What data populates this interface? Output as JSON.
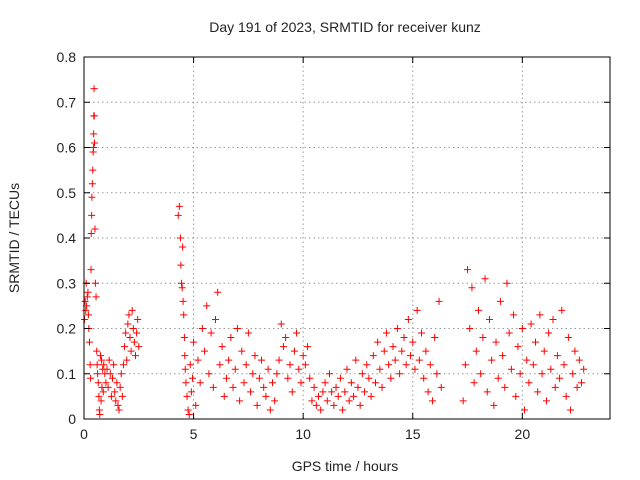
{
  "chart_data": {
    "type": "scatter",
    "title": "Day 191 of 2023, SRMTID for receiver kunz",
    "xlabel": "GPS time / hours",
    "ylabel": "SRMTID / TECUs",
    "xlim": [
      0,
      24
    ],
    "ylim": [
      0,
      0.8
    ],
    "xticks": [
      0,
      5,
      10,
      15,
      20
    ],
    "xtick_labels": [
      "0",
      "5",
      "10",
      "15",
      "20"
    ],
    "yticks": [
      0,
      0.1,
      0.2,
      0.3,
      0.4,
      0.5,
      0.6,
      0.7,
      0.8
    ],
    "ytick_labels": [
      "0",
      "0.1",
      "0.2",
      "0.3",
      "0.4",
      "0.5",
      "0.6",
      "0.7",
      "0.8"
    ],
    "grid": true,
    "marker": "+",
    "color": "#ff0000",
    "series": [
      {
        "name": "SRMTID",
        "points": [
          [
            0.02,
            0.22
          ],
          [
            0.05,
            0.26
          ],
          [
            0.08,
            0.24
          ],
          [
            0.1,
            0.3
          ],
          [
            0.12,
            0.25
          ],
          [
            0.15,
            0.27
          ],
          [
            0.18,
            0.28
          ],
          [
            0.2,
            0.23
          ],
          [
            0.22,
            0.2
          ],
          [
            0.25,
            0.17
          ],
          [
            0.28,
            0.12
          ],
          [
            0.3,
            0.09
          ],
          [
            0.32,
            0.33
          ],
          [
            0.33,
            0.41
          ],
          [
            0.35,
            0.45
          ],
          [
            0.36,
            0.49
          ],
          [
            0.38,
            0.52
          ],
          [
            0.4,
            0.55
          ],
          [
            0.42,
            0.59
          ],
          [
            0.43,
            0.6
          ],
          [
            0.44,
            0.63
          ],
          [
            0.45,
            0.67
          ],
          [
            0.46,
            0.73
          ],
          [
            0.47,
            0.67
          ],
          [
            0.48,
            0.61
          ],
          [
            0.5,
            0.42
          ],
          [
            0.52,
            0.3
          ],
          [
            0.55,
            0.27
          ],
          [
            0.58,
            0.15
          ],
          [
            0.6,
            0.12
          ],
          [
            0.62,
            0.1
          ],
          [
            0.65,
            0.08
          ],
          [
            0.68,
            0.05
          ],
          [
            0.7,
            0.02
          ],
          [
            0.72,
            0.01
          ],
          [
            0.75,
            0.14
          ],
          [
            0.78,
            0.04
          ],
          [
            0.8,
            0.13
          ],
          [
            0.82,
            0.07
          ],
          [
            0.85,
            0.11
          ],
          [
            0.88,
            0.06
          ],
          [
            0.9,
            0.12
          ],
          [
            0.95,
            0.1
          ],
          [
            1.0,
            0.08
          ],
          [
            1.05,
            0.11
          ],
          [
            1.1,
            0.07
          ],
          [
            1.15,
            0.13
          ],
          [
            1.2,
            0.1
          ],
          [
            1.25,
            0.05
          ],
          [
            1.3,
            0.09
          ],
          [
            1.35,
            0.12
          ],
          [
            1.4,
            0.06
          ],
          [
            1.45,
            0.04
          ],
          [
            1.5,
            0.08
          ],
          [
            1.55,
            0.03
          ],
          [
            1.6,
            0.02
          ],
          [
            1.65,
            0.07
          ],
          [
            1.7,
            0.1
          ],
          [
            1.75,
            0.05
          ],
          [
            1.8,
            0.12
          ],
          [
            1.85,
            0.16
          ],
          [
            1.9,
            0.19
          ],
          [
            1.95,
            0.13
          ],
          [
            2.0,
            0.21
          ],
          [
            2.05,
            0.23
          ],
          [
            2.1,
            0.18
          ],
          [
            2.15,
            0.15
          ],
          [
            2.2,
            0.24
          ],
          [
            2.25,
            0.2
          ],
          [
            2.3,
            0.17
          ],
          [
            2.35,
            0.14
          ],
          [
            2.4,
            0.19
          ],
          [
            2.45,
            0.22
          ],
          [
            2.5,
            0.16
          ],
          [
            4.3,
            0.45
          ],
          [
            4.35,
            0.47
          ],
          [
            4.4,
            0.4
          ],
          [
            4.42,
            0.34
          ],
          [
            4.45,
            0.3
          ],
          [
            4.48,
            0.29
          ],
          [
            4.5,
            0.38
          ],
          [
            4.52,
            0.26
          ],
          [
            4.55,
            0.23
          ],
          [
            4.58,
            0.18
          ],
          [
            4.6,
            0.14
          ],
          [
            4.62,
            0.11
          ],
          [
            4.65,
            0.08
          ],
          [
            4.7,
            0.05
          ],
          [
            4.75,
            0.02
          ],
          [
            4.8,
            0.01
          ],
          [
            4.85,
            0.12
          ],
          [
            4.9,
            0.06
          ],
          [
            4.95,
            0.09
          ],
          [
            5.0,
            0.17
          ],
          [
            5.1,
            0.03
          ],
          [
            5.2,
            0.13
          ],
          [
            5.3,
            0.08
          ],
          [
            5.4,
            0.2
          ],
          [
            5.5,
            0.15
          ],
          [
            5.6,
            0.25
          ],
          [
            5.7,
            0.1
          ],
          [
            5.8,
            0.19
          ],
          [
            5.9,
            0.07
          ],
          [
            6.0,
            0.22
          ],
          [
            6.1,
            0.28
          ],
          [
            6.2,
            0.12
          ],
          [
            6.3,
            0.16
          ],
          [
            6.4,
            0.05
          ],
          [
            6.5,
            0.09
          ],
          [
            6.6,
            0.13
          ],
          [
            6.7,
            0.18
          ],
          [
            6.8,
            0.07
          ],
          [
            6.9,
            0.11
          ],
          [
            7.0,
            0.2
          ],
          [
            7.1,
            0.04
          ],
          [
            7.2,
            0.15
          ],
          [
            7.3,
            0.08
          ],
          [
            7.4,
            0.12
          ],
          [
            7.5,
            0.19
          ],
          [
            7.6,
            0.06
          ],
          [
            7.7,
            0.1
          ],
          [
            7.8,
            0.14
          ],
          [
            7.9,
            0.03
          ],
          [
            8.0,
            0.09
          ],
          [
            8.1,
            0.13
          ],
          [
            8.2,
            0.07
          ],
          [
            8.3,
            0.05
          ],
          [
            8.4,
            0.11
          ],
          [
            8.5,
            0.02
          ],
          [
            8.6,
            0.08
          ],
          [
            8.7,
            0.04
          ],
          [
            8.8,
            0.1
          ],
          [
            8.9,
            0.13
          ],
          [
            9.0,
            0.21
          ],
          [
            9.1,
            0.16
          ],
          [
            9.2,
            0.18
          ],
          [
            9.3,
            0.09
          ],
          [
            9.4,
            0.12
          ],
          [
            9.5,
            0.06
          ],
          [
            9.6,
            0.15
          ],
          [
            9.7,
            0.19
          ],
          [
            9.8,
            0.11
          ],
          [
            9.9,
            0.08
          ],
          [
            10.0,
            0.14
          ],
          [
            10.1,
            0.12
          ],
          [
            10.2,
            0.16
          ],
          [
            10.3,
            0.09
          ],
          [
            10.4,
            0.04
          ],
          [
            10.5,
            0.07
          ],
          [
            10.6,
            0.03
          ],
          [
            10.7,
            0.05
          ],
          [
            10.8,
            0.02
          ],
          [
            10.9,
            0.06
          ],
          [
            11.0,
            0.08
          ],
          [
            11.1,
            0.04
          ],
          [
            11.2,
            0.1
          ],
          [
            11.3,
            0.06
          ],
          [
            11.4,
            0.03
          ],
          [
            11.5,
            0.07
          ],
          [
            11.6,
            0.05
          ],
          [
            11.7,
            0.09
          ],
          [
            11.8,
            0.02
          ],
          [
            11.9,
            0.06
          ],
          [
            12.0,
            0.11
          ],
          [
            12.1,
            0.04
          ],
          [
            12.2,
            0.08
          ],
          [
            12.3,
            0.05
          ],
          [
            12.4,
            0.13
          ],
          [
            12.5,
            0.07
          ],
          [
            12.6,
            0.03
          ],
          [
            12.7,
            0.1
          ],
          [
            12.8,
            0.06
          ],
          [
            12.9,
            0.12
          ],
          [
            13.0,
            0.09
          ],
          [
            13.1,
            0.05
          ],
          [
            13.2,
            0.14
          ],
          [
            13.3,
            0.08
          ],
          [
            13.4,
            0.17
          ],
          [
            13.5,
            0.11
          ],
          [
            13.6,
            0.07
          ],
          [
            13.7,
            0.15
          ],
          [
            13.8,
            0.19
          ],
          [
            13.9,
            0.12
          ],
          [
            14.0,
            0.09
          ],
          [
            14.1,
            0.16
          ],
          [
            14.2,
            0.13
          ],
          [
            14.3,
            0.2
          ],
          [
            14.4,
            0.1
          ],
          [
            14.5,
            0.15
          ],
          [
            14.6,
            0.18
          ],
          [
            14.7,
            0.12
          ],
          [
            14.8,
            0.22
          ],
          [
            14.9,
            0.14
          ],
          [
            15.0,
            0.17
          ],
          [
            15.1,
            0.11
          ],
          [
            15.2,
            0.24
          ],
          [
            15.3,
            0.13
          ],
          [
            15.4,
            0.19
          ],
          [
            15.5,
            0.09
          ],
          [
            15.6,
            0.15
          ],
          [
            15.7,
            0.06
          ],
          [
            15.8,
            0.12
          ],
          [
            15.9,
            0.04
          ],
          [
            16.0,
            0.18
          ],
          [
            16.1,
            0.1
          ],
          [
            16.2,
            0.26
          ],
          [
            16.3,
            0.07
          ],
          [
            17.3,
            0.04
          ],
          [
            17.4,
            0.12
          ],
          [
            17.5,
            0.33
          ],
          [
            17.6,
            0.2
          ],
          [
            17.7,
            0.29
          ],
          [
            17.8,
            0.08
          ],
          [
            17.9,
            0.15
          ],
          [
            18.0,
            0.24
          ],
          [
            18.1,
            0.1
          ],
          [
            18.2,
            0.18
          ],
          [
            18.3,
            0.31
          ],
          [
            18.4,
            0.06
          ],
          [
            18.5,
            0.22
          ],
          [
            18.6,
            0.13
          ],
          [
            18.7,
            0.03
          ],
          [
            18.8,
            0.17
          ],
          [
            18.9,
            0.09
          ],
          [
            19.0,
            0.26
          ],
          [
            19.1,
            0.14
          ],
          [
            19.2,
            0.07
          ],
          [
            19.3,
            0.3
          ],
          [
            19.4,
            0.19
          ],
          [
            19.5,
            0.11
          ],
          [
            19.6,
            0.23
          ],
          [
            19.7,
            0.05
          ],
          [
            19.8,
            0.16
          ],
          [
            19.9,
            0.1
          ],
          [
            20.0,
            0.2
          ],
          [
            20.1,
            0.02
          ],
          [
            20.2,
            0.13
          ],
          [
            20.3,
            0.08
          ],
          [
            20.4,
            0.21
          ],
          [
            20.5,
            0.12
          ],
          [
            20.6,
            0.17
          ],
          [
            20.7,
            0.06
          ],
          [
            20.8,
            0.23
          ],
          [
            20.9,
            0.1
          ],
          [
            21.0,
            0.15
          ],
          [
            21.1,
            0.04
          ],
          [
            21.2,
            0.19
          ],
          [
            21.3,
            0.11
          ],
          [
            21.4,
            0.22
          ],
          [
            21.5,
            0.07
          ],
          [
            21.6,
            0.14
          ],
          [
            21.7,
            0.09
          ],
          [
            21.8,
            0.24
          ],
          [
            21.9,
            0.12
          ],
          [
            22.0,
            0.05
          ],
          [
            22.1,
            0.18
          ],
          [
            22.2,
            0.02
          ],
          [
            22.3,
            0.1
          ],
          [
            22.4,
            0.15
          ],
          [
            22.5,
            0.07
          ],
          [
            22.6,
            0.13
          ],
          [
            22.7,
            0.08
          ],
          [
            22.8,
            0.11
          ]
        ]
      }
    ]
  }
}
